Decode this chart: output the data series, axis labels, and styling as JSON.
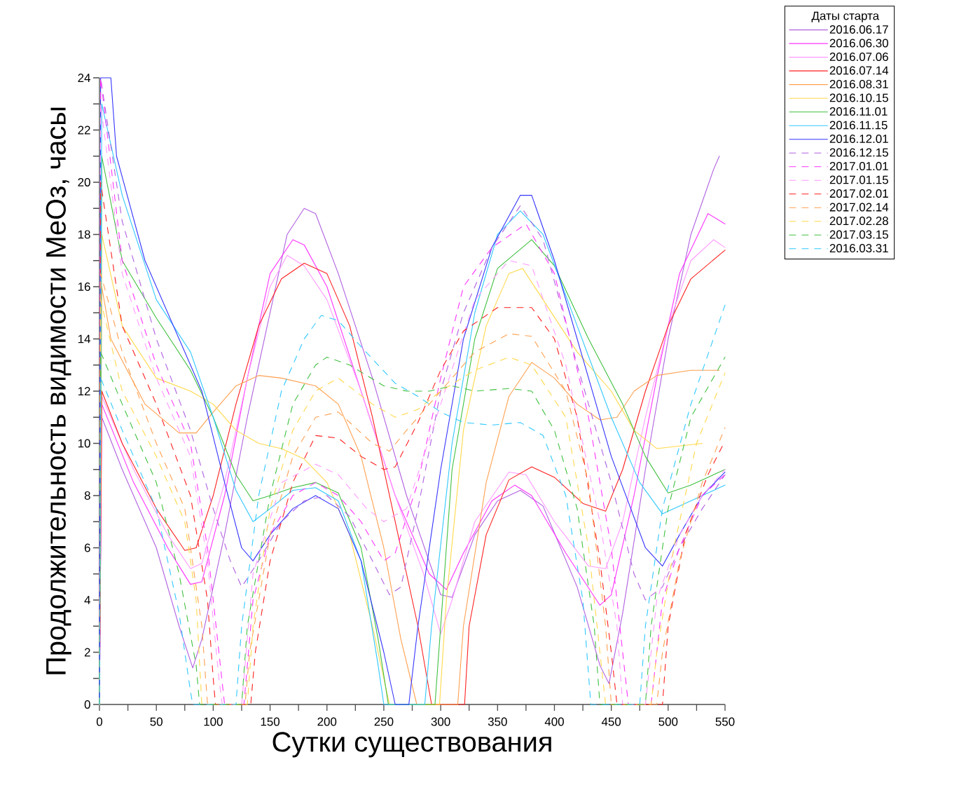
{
  "chart_data": {
    "type": "line",
    "xlabel": "Сутки существования",
    "ylabel": "Продолжительность видимости MeOз, часы",
    "legend_title": "Даты старта",
    "legend": "top right",
    "xlim": [
      0,
      550
    ],
    "ylim": [
      0,
      24
    ],
    "xticks": [
      0,
      50,
      100,
      150,
      200,
      250,
      300,
      350,
      400,
      450,
      500,
      550
    ],
    "yticks": [
      0,
      2,
      4,
      6,
      8,
      10,
      12,
      14,
      16,
      18,
      20,
      22,
      24
    ],
    "series": [
      {
        "name": "2016.06.17",
        "color": "#b060e0",
        "line_style": "solid",
        "x": [
          0,
          2,
          20,
          50,
          70,
          82,
          90,
          110,
          130,
          150,
          165,
          180,
          190,
          210,
          240,
          270,
          300,
          310,
          330,
          350,
          370,
          390,
          420,
          440,
          448,
          460,
          480,
          500,
          520,
          540,
          545
        ],
        "values": [
          0,
          11,
          9,
          6,
          3,
          1.4,
          2.5,
          6.5,
          11,
          15,
          18,
          19,
          18.8,
          16.5,
          12.5,
          8,
          4.2,
          4.1,
          6.5,
          7.8,
          8.2,
          7.6,
          4.5,
          1.5,
          0.8,
          3.5,
          9,
          14,
          18,
          20.5,
          21
        ]
      },
      {
        "name": "2016.06.30",
        "color": "#ff33ff",
        "line_style": "solid",
        "x": [
          0,
          2,
          30,
          60,
          80,
          90,
          110,
          130,
          150,
          170,
          180,
          200,
          230,
          260,
          290,
          305,
          320,
          345,
          365,
          380,
          410,
          440,
          450,
          470,
          490,
          510,
          535,
          550
        ],
        "values": [
          0,
          11.5,
          8.5,
          6,
          4.6,
          4.7,
          8,
          12.5,
          16.5,
          17.8,
          17.6,
          16,
          12,
          8,
          5,
          4.4,
          5.8,
          7.8,
          8.4,
          8,
          5.8,
          3.8,
          4.2,
          8,
          12.5,
          16.5,
          18.8,
          18.4
        ]
      },
      {
        "name": "2016.07.06",
        "color": "#ff99ff",
        "line_style": "solid",
        "x": [
          0,
          2,
          30,
          60,
          80,
          90,
          110,
          130,
          150,
          165,
          180,
          200,
          230,
          260,
          285,
          300,
          310,
          330,
          360,
          375,
          400,
          430,
          445,
          460,
          480,
          500,
          520,
          540,
          550
        ],
        "values": [
          0,
          11.8,
          9,
          6.5,
          5.2,
          5.4,
          8.5,
          12.5,
          16,
          17.2,
          16.8,
          15.5,
          12,
          8,
          5,
          2.7,
          4,
          7,
          8.9,
          8.8,
          7,
          5.3,
          5.2,
          7,
          11,
          14.5,
          17,
          17.8,
          17.5
        ]
      },
      {
        "name": "2016.07.14",
        "color": "#ff2020",
        "line_style": "solid",
        "x": [
          0,
          2,
          20,
          50,
          75,
          85,
          100,
          120,
          140,
          160,
          180,
          200,
          220,
          240,
          260,
          280,
          292,
          321,
          325,
          340,
          360,
          380,
          400,
          425,
          445,
          460,
          480,
          500,
          520,
          550
        ],
        "values": [
          0,
          12,
          10,
          7.5,
          5.9,
          6,
          8,
          11.5,
          14.5,
          16.3,
          16.9,
          16.5,
          14.5,
          11,
          7,
          3,
          0,
          0,
          3,
          6.5,
          8.6,
          9.1,
          8.7,
          7.7,
          7.4,
          9,
          12,
          14.5,
          16.3,
          17.4
        ]
      },
      {
        "name": "2016.08.31",
        "color": "#ffa050",
        "line_style": "solid",
        "x": [
          0,
          2,
          10,
          40,
          70,
          85,
          100,
          120,
          140,
          160,
          190,
          210,
          230,
          250,
          265,
          279,
          315,
          320,
          340,
          360,
          380,
          400,
          420,
          440,
          455,
          470,
          490,
          520,
          545
        ],
        "values": [
          0,
          16,
          14,
          11.5,
          10.4,
          10.4,
          11.2,
          12.2,
          12.6,
          12.5,
          12.2,
          11.5,
          9.5,
          6,
          2.5,
          0,
          0,
          3,
          8.5,
          11.8,
          13.1,
          12.5,
          11.5,
          10.9,
          11,
          12,
          12.6,
          12.8,
          12.8
        ]
      },
      {
        "name": "2016.10.15",
        "color": "#ffd84a",
        "line_style": "solid",
        "x": [
          0,
          2,
          20,
          50,
          80,
          100,
          120,
          140,
          160,
          180,
          200,
          220,
          240,
          255,
          299,
          305,
          320,
          340,
          360,
          372,
          390,
          420,
          450,
          470,
          490,
          510,
          530
        ],
        "values": [
          0,
          18,
          14.5,
          12.5,
          12,
          11.5,
          10.5,
          10,
          9.8,
          9.4,
          8.5,
          6.5,
          3,
          0,
          0,
          4,
          10.5,
          14.5,
          16.5,
          16.7,
          15.5,
          13.5,
          12,
          10.5,
          9.8,
          9.9,
          10
        ]
      },
      {
        "name": "2016.11.01",
        "color": "#40c040",
        "line_style": "solid",
        "x": [
          0,
          2,
          20,
          50,
          80,
          100,
          120,
          135,
          150,
          170,
          190,
          210,
          230,
          245,
          254,
          295,
          300,
          310,
          330,
          350,
          380,
          400,
          430,
          460,
          480,
          500,
          520,
          550
        ],
        "values": [
          0,
          21,
          17,
          14.8,
          12.8,
          11,
          8.8,
          7.8,
          8,
          8.3,
          8.5,
          8.1,
          6,
          2.5,
          0,
          0,
          3,
          9,
          14,
          16.7,
          17.8,
          16.8,
          14,
          11.5,
          9.5,
          8.1,
          8.4,
          9
        ]
      },
      {
        "name": "2016.11.15",
        "color": "#30c8ff",
        "line_style": "solid",
        "x": [
          0,
          2,
          20,
          50,
          80,
          100,
          120,
          135,
          150,
          170,
          190,
          210,
          230,
          245,
          250,
          286,
          292,
          310,
          330,
          350,
          370,
          390,
          420,
          450,
          475,
          495,
          520,
          550
        ],
        "values": [
          0,
          23,
          19.5,
          15.5,
          13.5,
          11,
          8.2,
          7,
          7.5,
          8.2,
          8.3,
          7.8,
          5.5,
          1.5,
          0,
          0,
          3,
          10,
          15,
          18,
          18.9,
          18,
          14.5,
          11,
          8.5,
          7.3,
          7.8,
          8.4
        ]
      },
      {
        "name": "2016.12.01",
        "color": "#3535ff",
        "line_style": "solid",
        "x": [
          0,
          1,
          10,
          15,
          40,
          70,
          90,
          110,
          125,
          135,
          150,
          170,
          190,
          210,
          230,
          250,
          260,
          272,
          280,
          300,
          320,
          345,
          370,
          380,
          400,
          420,
          450,
          480,
          495,
          510,
          530,
          550
        ],
        "values": [
          0,
          24,
          24,
          21,
          17,
          14,
          12,
          8.5,
          6,
          5.5,
          6.5,
          7.5,
          8,
          7.5,
          5.5,
          2,
          0,
          0,
          3,
          9,
          14,
          17.5,
          19.5,
          19.5,
          17,
          14,
          9.5,
          6,
          5.3,
          6.5,
          8,
          8.9
        ]
      },
      {
        "name": "2016.12.15",
        "color": "#b060e0",
        "line_style": "dashed",
        "x": [
          0,
          1,
          20,
          50,
          80,
          100,
          115,
          125,
          140,
          160,
          180,
          200,
          220,
          240,
          255,
          265,
          280,
          300,
          320,
          345,
          370,
          390,
          420,
          450,
          470,
          480,
          495,
          510,
          530,
          550
        ],
        "values": [
          0,
          24,
          18.5,
          14,
          10.5,
          7.5,
          5.5,
          4.5,
          5.5,
          7,
          7.8,
          8,
          7.2,
          5.5,
          4.2,
          4.5,
          7.5,
          12,
          15,
          17.5,
          19.1,
          17.8,
          13,
          8.5,
          5,
          4,
          4.5,
          6,
          7.5,
          8.8
        ]
      },
      {
        "name": "2017.01.01",
        "color": "#ff33ff",
        "line_style": "dashed",
        "x": [
          0,
          1,
          20,
          50,
          80,
          95,
          105,
          110,
          127,
          135,
          150,
          170,
          190,
          210,
          230,
          250,
          260,
          280,
          300,
          320,
          345,
          375,
          400,
          430,
          450,
          460,
          465,
          485,
          495,
          510,
          530,
          550
        ],
        "values": [
          0,
          24,
          17,
          13,
          10,
          6,
          2,
          0,
          0,
          4,
          6.5,
          8,
          8.5,
          8,
          7,
          5.5,
          5.8,
          8.5,
          12.5,
          16,
          17.5,
          18.4,
          16.5,
          11,
          6,
          2,
          0,
          0,
          4,
          6,
          8,
          8.8
        ]
      },
      {
        "name": "2017.01.15",
        "color": "#ff99ff",
        "line_style": "dashed",
        "x": [
          0,
          1,
          20,
          50,
          80,
          95,
          105,
          108,
          125,
          135,
          160,
          190,
          210,
          235,
          250,
          270,
          300,
          330,
          360,
          380,
          410,
          440,
          455,
          460,
          480,
          490,
          510,
          530,
          550
        ],
        "values": [
          0,
          23,
          16.5,
          12.5,
          9.5,
          5.5,
          1,
          0,
          0,
          5,
          8.5,
          9.2,
          8.8,
          7.5,
          7,
          7.5,
          11.5,
          15.5,
          17,
          16.8,
          13,
          7,
          3,
          0,
          0,
          4,
          6.5,
          8,
          9
        ]
      },
      {
        "name": "2017.02.01",
        "color": "#ff2020",
        "line_style": "dashed",
        "x": [
          0,
          1,
          20,
          50,
          80,
          95,
          100,
          102,
          133,
          137,
          150,
          170,
          190,
          210,
          230,
          250,
          260,
          280,
          300,
          320,
          350,
          380,
          400,
          420,
          440,
          450,
          455,
          495,
          500,
          515,
          535,
          550
        ],
        "values": [
          0,
          20,
          14.5,
          11.5,
          8,
          4,
          1,
          0,
          0,
          2,
          5.5,
          8.5,
          10.3,
          10.2,
          9.5,
          9,
          9.1,
          10.8,
          12.8,
          14.3,
          15.2,
          15.2,
          14,
          11,
          5.5,
          2,
          0,
          0,
          3,
          6.5,
          8.8,
          10.1
        ]
      },
      {
        "name": "2017.02.14",
        "color": "#ffa050",
        "line_style": "dashed",
        "x": [
          0,
          1,
          20,
          50,
          75,
          90,
          95,
          128,
          132,
          150,
          170,
          190,
          210,
          240,
          255,
          270,
          300,
          330,
          360,
          380,
          410,
          430,
          445,
          450,
          490,
          495,
          510,
          530,
          550
        ],
        "values": [
          0,
          16.5,
          13.5,
          10,
          7.5,
          3,
          0,
          0,
          2,
          6.5,
          9.5,
          11,
          11.2,
          10,
          9.7,
          10.5,
          12,
          13.5,
          14.2,
          14.1,
          12,
          8.5,
          3,
          0,
          0,
          2,
          5.5,
          8.5,
          10.6
        ]
      },
      {
        "name": "2017.02.28",
        "color": "#ffd84a",
        "line_style": "dashed",
        "x": [
          0,
          1,
          20,
          50,
          75,
          85,
          90,
          130,
          135,
          150,
          170,
          190,
          210,
          240,
          260,
          280,
          300,
          330,
          360,
          380,
          410,
          430,
          440,
          445,
          485,
          490,
          505,
          525,
          550
        ],
        "values": [
          0,
          15.5,
          12,
          9.5,
          7,
          4,
          0,
          0,
          3,
          7.5,
          10.5,
          12,
          12.5,
          11.5,
          11,
          11.3,
          12,
          12.8,
          13.3,
          13,
          11,
          6,
          2,
          0,
          0,
          2,
          6,
          10,
          12.7
        ]
      },
      {
        "name": "2017.03.15",
        "color": "#40c040",
        "line_style": "dashed",
        "x": [
          0,
          1,
          20,
          50,
          70,
          85,
          88,
          125,
          130,
          150,
          170,
          190,
          200,
          220,
          250,
          270,
          290,
          310,
          330,
          360,
          380,
          400,
          420,
          435,
          440,
          480,
          485,
          500,
          520,
          550
        ],
        "values": [
          0,
          13.5,
          11.5,
          8.5,
          5,
          1.5,
          0,
          0,
          3,
          8,
          11.5,
          13,
          13.3,
          13,
          12.2,
          12,
          12,
          12.2,
          12,
          12.1,
          12,
          10.5,
          7.5,
          3,
          0,
          0,
          3,
          7.5,
          11,
          13.3
        ]
      },
      {
        "name": "2016.03.31",
        "color": "#30c8ff",
        "line_style": "dashed",
        "x": [
          0,
          1,
          20,
          50,
          70,
          80,
          82,
          120,
          125,
          140,
          160,
          180,
          195,
          210,
          230,
          260,
          280,
          300,
          320,
          345,
          370,
          390,
          410,
          425,
          432,
          475,
          480,
          495,
          520,
          550
        ],
        "values": [
          0,
          12.5,
          10.5,
          7.5,
          3.5,
          0.5,
          0,
          0,
          3,
          8,
          12,
          14,
          14.9,
          14.7,
          13.7,
          12.3,
          11.8,
          11.2,
          10.8,
          10.7,
          10.8,
          10.3,
          8,
          4,
          0,
          0,
          3,
          7.5,
          11.5,
          15.3
        ]
      }
    ]
  }
}
